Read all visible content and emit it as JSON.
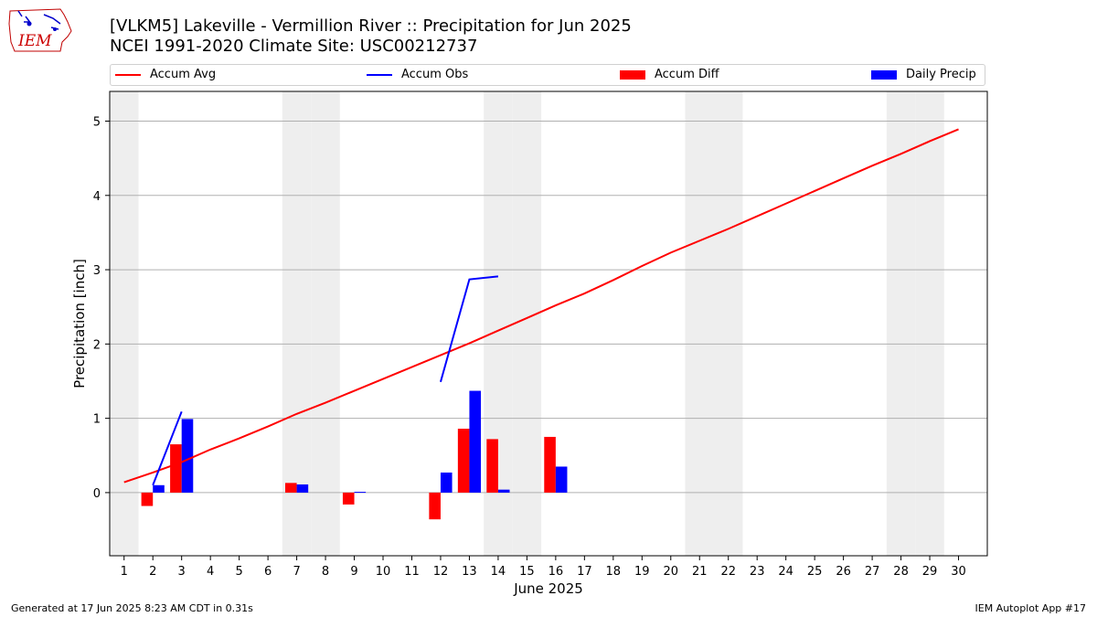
{
  "logo": {
    "text": "IEM"
  },
  "title": {
    "line1": "[VLKM5] Lakeville - Vermillion River :: Precipitation for Jun 2025",
    "line2": "NCEI 1991-2020 Climate Site: USC00212737"
  },
  "legend": {
    "accum_avg": "Accum Avg",
    "accum_obs": "Accum Obs",
    "accum_diff": "Accum Diff",
    "daily_precip": "Daily Precip"
  },
  "footer": {
    "left": "Generated at 17 Jun 2025 8:23 AM CDT in 0.31s",
    "right": "IEM Autoplot App #17"
  },
  "colors": {
    "avg": "#ff0000",
    "obs": "#0000ff",
    "diff": "#ff0000",
    "daily": "#0000ff",
    "weekend": "#eeeeee",
    "grid": "#b0b0b0"
  },
  "chart_data": {
    "type": "bar",
    "xlabel": "June 2025",
    "ylabel": "Precipitation [inch]",
    "xlim": [
      0.5,
      31.0
    ],
    "ylim": [
      -0.85,
      5.4
    ],
    "yticks": [
      0,
      1,
      2,
      3,
      4,
      5
    ],
    "xticks": [
      1,
      2,
      3,
      4,
      5,
      6,
      7,
      8,
      9,
      10,
      11,
      12,
      13,
      14,
      15,
      16,
      17,
      18,
      19,
      20,
      21,
      22,
      23,
      24,
      25,
      26,
      27,
      28,
      29,
      30
    ],
    "weekends": [
      1,
      7,
      8,
      14,
      15,
      21,
      22,
      28,
      29
    ],
    "grid": true,
    "legend_position": "top",
    "accum_avg": {
      "x": [
        1,
        2,
        3,
        4,
        5,
        6,
        7,
        8,
        9,
        10,
        11,
        12,
        13,
        14,
        15,
        16,
        17,
        18,
        19,
        20,
        21,
        22,
        23,
        24,
        25,
        26,
        27,
        28,
        29,
        30
      ],
      "y": [
        0.14,
        0.27,
        0.41,
        0.58,
        0.73,
        0.89,
        1.06,
        1.21,
        1.37,
        1.53,
        1.69,
        1.85,
        2.01,
        2.18,
        2.35,
        2.52,
        2.68,
        2.86,
        3.05,
        3.23,
        3.39,
        3.55,
        3.72,
        3.89,
        4.06,
        4.23,
        4.4,
        4.56,
        4.73,
        4.89
      ]
    },
    "accum_obs": {
      "segments": [
        {
          "x": [
            2,
            3
          ],
          "y": [
            0.1,
            1.09
          ]
        },
        {
          "x": [
            12,
            13,
            14
          ],
          "y": [
            1.49,
            2.87,
            2.91
          ]
        }
      ]
    },
    "accum_diff": {
      "x": [
        2,
        3,
        7,
        9,
        12,
        13,
        14,
        16
      ],
      "y": [
        -0.18,
        0.65,
        0.13,
        -0.16,
        -0.36,
        0.86,
        0.72,
        0.75
      ]
    },
    "daily_precip": {
      "x": [
        2,
        3,
        7,
        9,
        12,
        13,
        14,
        16
      ],
      "y": [
        0.1,
        0.99,
        0.11,
        0.01,
        0.27,
        1.37,
        0.04,
        0.35
      ]
    }
  }
}
